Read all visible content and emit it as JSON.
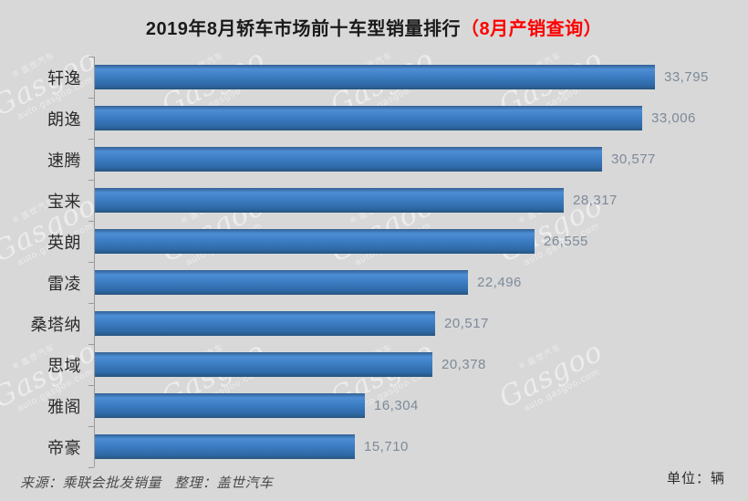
{
  "title": {
    "main": "2019年8月轿车市场前十车型销量排行",
    "highlight": "（8月产销查询）"
  },
  "chart_data": {
    "type": "bar",
    "orientation": "horizontal",
    "title": "2019年8月轿车市场前十车型销量排行（8月产销查询）",
    "categories": [
      "轩逸",
      "朗逸",
      "速腾",
      "宝来",
      "英朗",
      "雷凌",
      "桑塔纳",
      "思域",
      "雅阁",
      "帝豪"
    ],
    "values": [
      33795,
      33006,
      30577,
      28317,
      26555,
      22496,
      20517,
      20378,
      16304,
      15710
    ],
    "value_labels": [
      "33,795",
      "33,006",
      "30,577",
      "28,317",
      "26,555",
      "22,496",
      "20,517",
      "20,378",
      "16,304",
      "15,710"
    ],
    "xlabel": "",
    "ylabel": "",
    "unit": "辆",
    "xlim": [
      0,
      35000
    ],
    "grid": false,
    "legend": false,
    "data_labels": true
  },
  "footer": {
    "source": "来源：乘联会批发销量",
    "editor": "整理：盖世汽车",
    "unit": "单位：辆"
  },
  "watermark": {
    "logo_glyph": "≡",
    "brand_cn": "盖世汽车",
    "brand": "Gasgoo",
    "site": "auto.gasgoo.com"
  },
  "colors": {
    "background": "#d8d8d8",
    "title_text": "#1a1a1a",
    "highlight_text": "#fe0000",
    "category_text": "#2b2b2b",
    "value_text": "#7d8a99",
    "footer_text": "#4a4a4a",
    "axis": "#9a9a9a",
    "bar_dark": "#315f93",
    "bar_light": "#4d8ed4",
    "bar_mid": "#3d7ec4",
    "bar_deep": "#2f6aa8",
    "bar_edge": "#27557f"
  }
}
